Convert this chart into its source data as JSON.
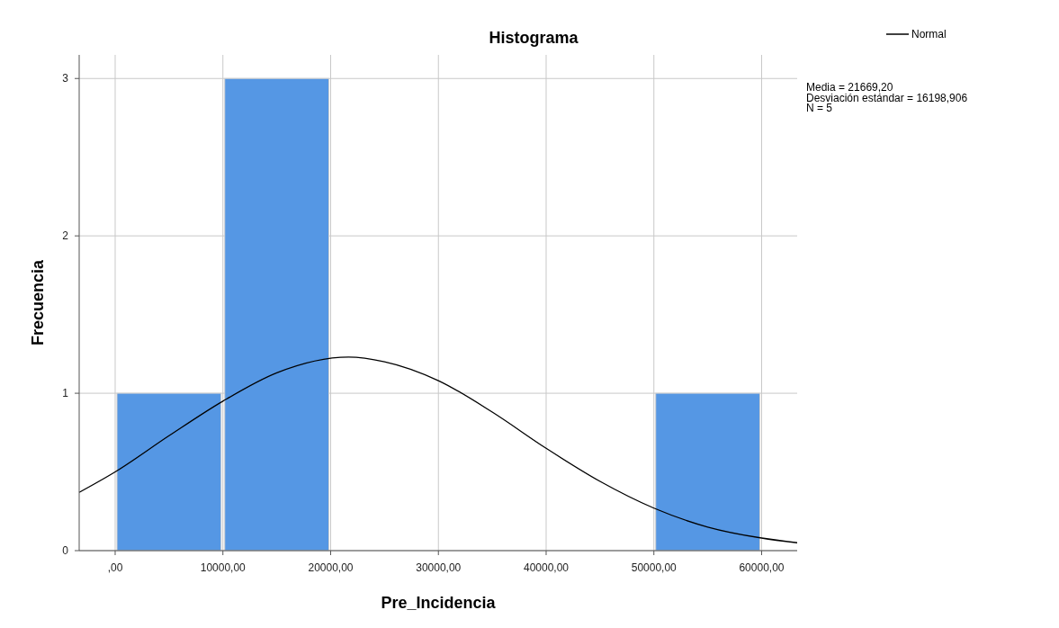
{
  "chart_data": {
    "type": "histogram",
    "title": "Histograma",
    "xlabel": "Pre_Incidencia",
    "ylabel": "Frecuencia",
    "bins": [
      0,
      10000,
      20000,
      30000,
      40000,
      50000,
      60000
    ],
    "values": [
      1,
      3,
      0,
      0,
      0,
      1
    ],
    "color": "#5597e4",
    "series": [
      {
        "type": "line",
        "name": "Normal",
        "color": "#000000",
        "x": [
          -3340,
          0,
          5000,
          10000,
          15000,
          21669,
          25000,
          30000,
          35000,
          40000,
          45000,
          50000,
          55000,
          60000,
          63300
        ],
        "values": [
          0.37,
          0.5,
          0.73,
          0.95,
          1.13,
          1.23,
          1.2,
          1.08,
          0.88,
          0.65,
          0.44,
          0.27,
          0.15,
          0.08,
          0.05
        ]
      }
    ],
    "xlim": [
      -3340,
      63300
    ],
    "xticks": [
      {
        "value": 0,
        "label": ",00"
      },
      {
        "value": 10000,
        "label": "10000,00"
      },
      {
        "value": 20000,
        "label": "20000,00"
      },
      {
        "value": 30000,
        "label": "30000,00"
      },
      {
        "value": 40000,
        "label": "40000,00"
      },
      {
        "value": 50000,
        "label": "50000,00"
      },
      {
        "value": 60000,
        "label": "60000,00"
      }
    ],
    "ylim": [
      0,
      3.15
    ],
    "yticks": [
      0,
      1,
      2,
      3
    ],
    "grid": true,
    "legend": "top right",
    "marker": "none",
    "line_style": "solid",
    "annotations": [
      "Media = 21669,20",
      "Desviación estándar = 16198,906",
      "N = 5"
    ]
  }
}
